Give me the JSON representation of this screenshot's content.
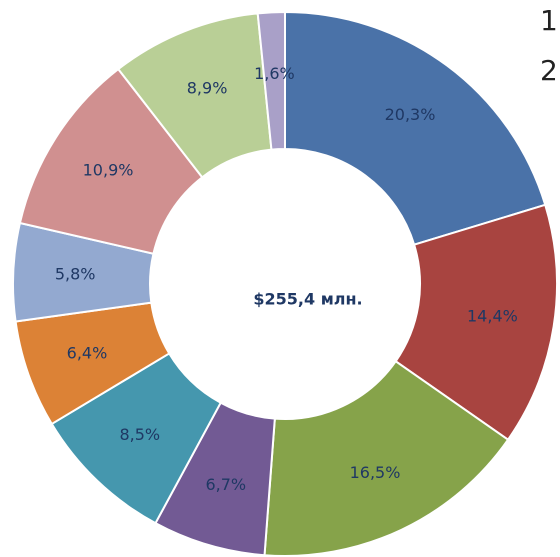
{
  "chart_data": {
    "type": "donut",
    "center_label": "$255,4 млн.",
    "categories": [
      null,
      null,
      null,
      null,
      null,
      null,
      null,
      null,
      null,
      null
    ],
    "values": [
      20.3,
      14.4,
      16.5,
      6.7,
      8.5,
      6.4,
      5.8,
      10.9,
      8.9,
      1.6
    ],
    "value_labels": [
      "20,3%",
      "14,4%",
      "16,5%",
      "6,7%",
      "8,5%",
      "6,4%",
      "5,8%",
      "10,9%",
      "8,9%",
      "1,6%"
    ],
    "colors": [
      "#4a72a8",
      "#a84440",
      "#86a34a",
      "#725a94",
      "#4597ae",
      "#dc8236",
      "#93a9d0",
      "#d09090",
      "#b9cf96",
      "#a9a0c8"
    ],
    "legend_fragments": [
      "1",
      "2"
    ]
  }
}
